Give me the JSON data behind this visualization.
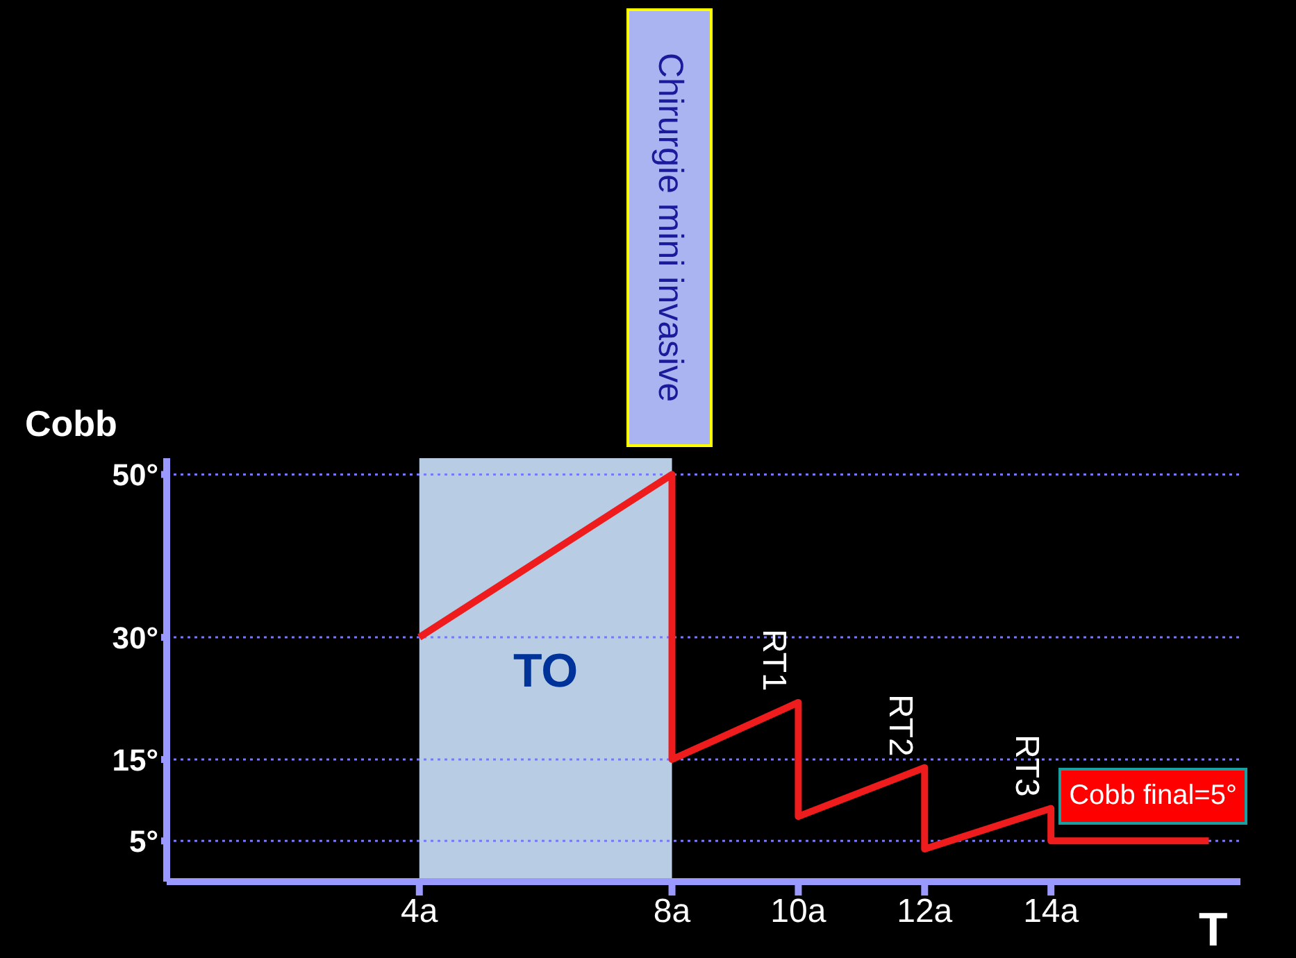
{
  "chart_data": {
    "type": "line",
    "xlabel": "T",
    "ylabel": "Cobb",
    "series": [
      {
        "color": "#ee1c1c",
        "x": [
          4,
          8,
          8,
          10,
          10,
          12,
          12,
          14,
          14,
          16.5
        ],
        "values": [
          30,
          50,
          15,
          22,
          8,
          14,
          4,
          9,
          5,
          5
        ]
      }
    ],
    "xlim": [
      0,
      17
    ],
    "xticks": [
      {
        "value": 4,
        "label": "4a"
      },
      {
        "value": 8,
        "label": "8a"
      },
      {
        "value": 10,
        "label": "10a"
      },
      {
        "value": 12,
        "label": "12a"
      },
      {
        "value": 14,
        "label": "14a"
      }
    ],
    "ylim": [
      0,
      52
    ],
    "yticks": [
      {
        "value": 5,
        "label": "5°"
      },
      {
        "value": 15,
        "label": "15°"
      },
      {
        "value": 30,
        "label": "30°"
      },
      {
        "value": 50,
        "label": "50°"
      }
    ],
    "ref_lines": [
      {
        "axis": "y",
        "value": 50,
        "color": "#7777ff",
        "line_style": "dotted"
      },
      {
        "axis": "y",
        "value": 30,
        "color": "#7777ff",
        "line_style": "dotted"
      },
      {
        "axis": "y",
        "value": 15,
        "color": "#7777ff",
        "line_style": "dotted"
      },
      {
        "axis": "y",
        "value": 5,
        "color": "#7777ff",
        "line_style": "dotted"
      }
    ],
    "bands": [
      {
        "axis": "x",
        "from": 4,
        "to": 8,
        "label": "TO",
        "color": "#b8cce4"
      }
    ],
    "annotations": [
      {
        "text": "Chirurgie mini invasive",
        "x": 8,
        "y": 50
      },
      {
        "text": "RT1",
        "x": 10,
        "y": 22
      },
      {
        "text": "RT2",
        "x": 12,
        "y": 14
      },
      {
        "text": "RT3",
        "x": 14,
        "y": 9
      },
      {
        "text": "Cobb final=5°",
        "x": 16.5,
        "y": 5
      }
    ]
  }
}
